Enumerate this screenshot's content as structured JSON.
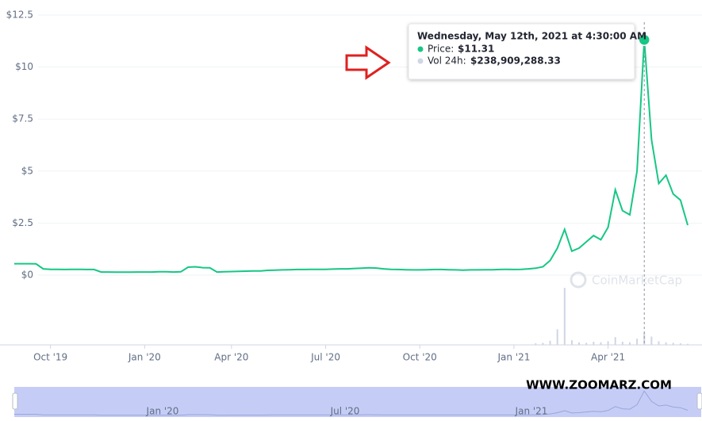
{
  "chart_data": {
    "type": "line",
    "categories": [
      null,
      null,
      null,
      null,
      null,
      "Oct '19",
      null,
      null,
      null,
      null,
      null,
      null,
      null,
      null,
      null,
      null,
      null,
      null,
      "Jan '20",
      null,
      null,
      null,
      null,
      null,
      null,
      null,
      null,
      null,
      null,
      null,
      "Apr '20",
      null,
      null,
      null,
      null,
      null,
      null,
      null,
      null,
      null,
      null,
      null,
      null,
      "Jul '20",
      null,
      null,
      null,
      null,
      null,
      null,
      null,
      null,
      null,
      null,
      null,
      null,
      "Oct '20",
      null,
      null,
      null,
      null,
      null,
      null,
      null,
      null,
      null,
      null,
      null,
      null,
      "Jan '21",
      null,
      null,
      null,
      null,
      null,
      null,
      null,
      null,
      null,
      null,
      null,
      null,
      "Apr '21",
      null,
      null,
      null,
      null,
      null,
      null,
      null,
      null,
      null,
      null,
      null
    ],
    "series": [
      {
        "name": "Price:",
        "color": "#16c784",
        "values": [
          0.55,
          0.55,
          0.55,
          0.54,
          0.3,
          0.28,
          0.28,
          0.27,
          0.28,
          0.28,
          0.27,
          0.27,
          0.15,
          0.15,
          0.14,
          0.14,
          0.14,
          0.15,
          0.15,
          0.15,
          0.16,
          0.16,
          0.15,
          0.16,
          0.38,
          0.4,
          0.36,
          0.35,
          0.15,
          0.16,
          0.17,
          0.18,
          0.19,
          0.2,
          0.2,
          0.23,
          0.24,
          0.25,
          0.26,
          0.27,
          0.27,
          0.28,
          0.28,
          0.28,
          0.29,
          0.3,
          0.3,
          0.32,
          0.33,
          0.35,
          0.34,
          0.3,
          0.28,
          0.27,
          0.26,
          0.25,
          0.25,
          0.26,
          0.27,
          0.27,
          0.26,
          0.25,
          0.24,
          0.25,
          0.25,
          0.26,
          0.26,
          0.27,
          0.28,
          0.27,
          0.28,
          0.3,
          0.33,
          0.4,
          0.7,
          1.3,
          2.2,
          1.15,
          1.3,
          1.6,
          1.9,
          1.7,
          2.3,
          4.1,
          3.1,
          2.9,
          5.0,
          11.31,
          6.5,
          4.4,
          4.8,
          3.9,
          3.6,
          2.4
        ]
      },
      {
        "name": "Vol 24h:",
        "color": "#cfd6e4",
        "axis": "y2",
        "values": [
          4000000,
          4000000,
          4000000,
          4000000,
          4000000,
          4000000,
          4000000,
          4000000,
          4000000,
          4000000,
          4000000,
          4000000,
          4000000,
          4000000,
          4000000,
          4000000,
          4000000,
          4000000,
          4000000,
          4000000,
          4000000,
          4000000,
          4000000,
          4000000,
          4000000,
          4000000,
          4000000,
          4000000,
          4000000,
          4000000,
          4000000,
          4000000,
          4000000,
          4000000,
          4000000,
          4000000,
          4000000,
          4000000,
          4000000,
          4000000,
          4000000,
          4000000,
          4000000,
          4000000,
          4000000,
          4000000,
          4000000,
          4000000,
          4000000,
          4000000,
          4000000,
          4000000,
          4000000,
          4000000,
          4000000,
          4000000,
          4000000,
          4000000,
          4000000,
          4000000,
          4000000,
          4000000,
          4000000,
          4000000,
          4000000,
          4000000,
          4000000,
          4000000,
          4000000,
          4000000,
          4000000,
          4000000,
          30000000,
          40000000,
          80000000,
          300000000,
          1100000000,
          90000000,
          50000000,
          40000000,
          60000000,
          50000000,
          70000000,
          150000000,
          60000000,
          50000000,
          120000000,
          238909288.33,
          160000000,
          70000000,
          50000000,
          40000000,
          30000000,
          20000000
        ]
      }
    ],
    "ylim": [
      0,
      12.5
    ],
    "yticks": [
      {
        "value": 0,
        "label": "$0"
      },
      {
        "value": 2.5,
        "label": "$2.5"
      },
      {
        "value": 5,
        "label": "$5"
      },
      {
        "value": 7.5,
        "label": "$7.5"
      },
      {
        "value": 10,
        "label": "$10"
      },
      {
        "value": 12.5,
        "label": "$12.5"
      }
    ],
    "y2lim": [
      0,
      1100000000
    ],
    "grid": true,
    "tooltip": {
      "title": "Wednesday, May 12th, 2021 at 4:30:00 AM",
      "value_labels": [
        "$11.31",
        "$238,909,288.33"
      ]
    },
    "navigator": {
      "labels": [
        "Jan '20",
        "Jul '20",
        "Jan '21"
      ]
    },
    "watermarks": [
      "CoinMarketCap",
      "WWW.ZOOMARZ.COM"
    ]
  }
}
